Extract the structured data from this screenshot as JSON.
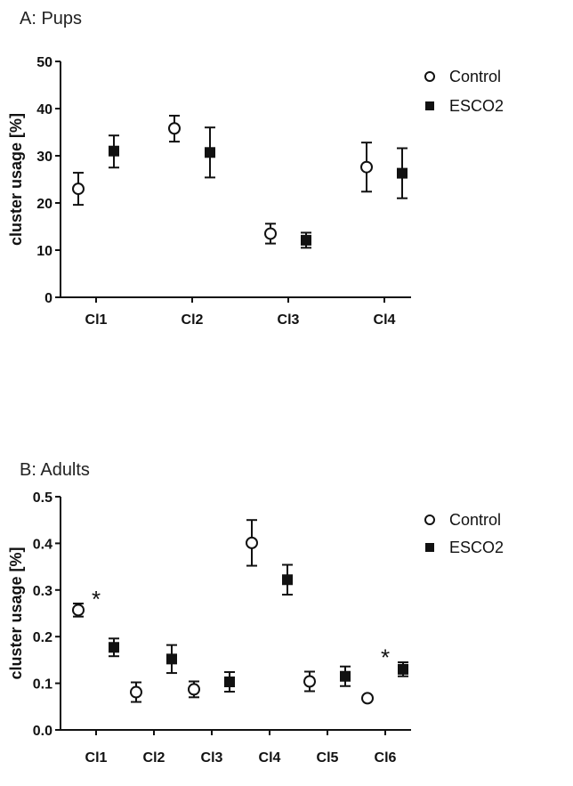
{
  "chart_data": [
    {
      "type": "scatter",
      "title": "A: Pups",
      "xlabel": "",
      "ylabel": "cluster usage [%]",
      "categories": [
        "Cl1",
        "Cl2",
        "Cl3",
        "Cl4"
      ],
      "ylim": [
        0,
        50
      ],
      "yticks": [
        "0",
        "10",
        "20",
        "30",
        "40",
        "50"
      ],
      "legend_position": "top-right",
      "series": [
        {
          "name": "Control",
          "marker": "open-circle",
          "color": "#000000",
          "values": [
            23.0,
            35.8,
            13.5,
            27.6
          ],
          "err_low": [
            19.6,
            33.0,
            11.4,
            22.4
          ],
          "err_high": [
            26.4,
            38.5,
            15.6,
            32.8
          ]
        },
        {
          "name": "ESCO2",
          "marker": "filled-square",
          "color": "#000000",
          "values": [
            31.0,
            30.7,
            12.1,
            26.3
          ],
          "err_low": [
            27.5,
            25.4,
            10.5,
            21.0
          ],
          "err_high": [
            34.3,
            36.0,
            13.7,
            31.6
          ]
        }
      ],
      "annotations": []
    },
    {
      "type": "scatter",
      "title": "B: Adults",
      "xlabel": "",
      "ylabel": "cluster usage [%]",
      "categories": [
        "Cl1",
        "Cl2",
        "Cl3",
        "Cl4",
        "Cl5",
        "Cl6"
      ],
      "ylim": [
        0,
        0.5
      ],
      "yticks": [
        "0.0",
        "0.1",
        "0.2",
        "0.3",
        "0.4",
        "0.5"
      ],
      "legend_position": "top-right",
      "series": [
        {
          "name": "Control",
          "marker": "open-circle",
          "color": "#000000",
          "values": [
            0.257,
            0.081,
            0.087,
            0.401,
            0.104,
            0.068
          ],
          "err_low": [
            0.243,
            0.06,
            0.07,
            0.352,
            0.083,
            0.063
          ],
          "err_high": [
            0.271,
            0.102,
            0.104,
            0.45,
            0.125,
            0.073
          ]
        },
        {
          "name": "ESCO2",
          "marker": "filled-square",
          "color": "#000000",
          "values": [
            0.177,
            0.152,
            0.103,
            0.322,
            0.115,
            0.13
          ],
          "err_low": [
            0.158,
            0.122,
            0.082,
            0.29,
            0.094,
            0.115
          ],
          "err_high": [
            0.196,
            0.182,
            0.124,
            0.354,
            0.136,
            0.145
          ]
        }
      ],
      "annotations": [
        {
          "text": "*",
          "category": "Cl1",
          "y": 0.29
        },
        {
          "text": "*",
          "category": "Cl6",
          "y": 0.165
        }
      ]
    }
  ]
}
